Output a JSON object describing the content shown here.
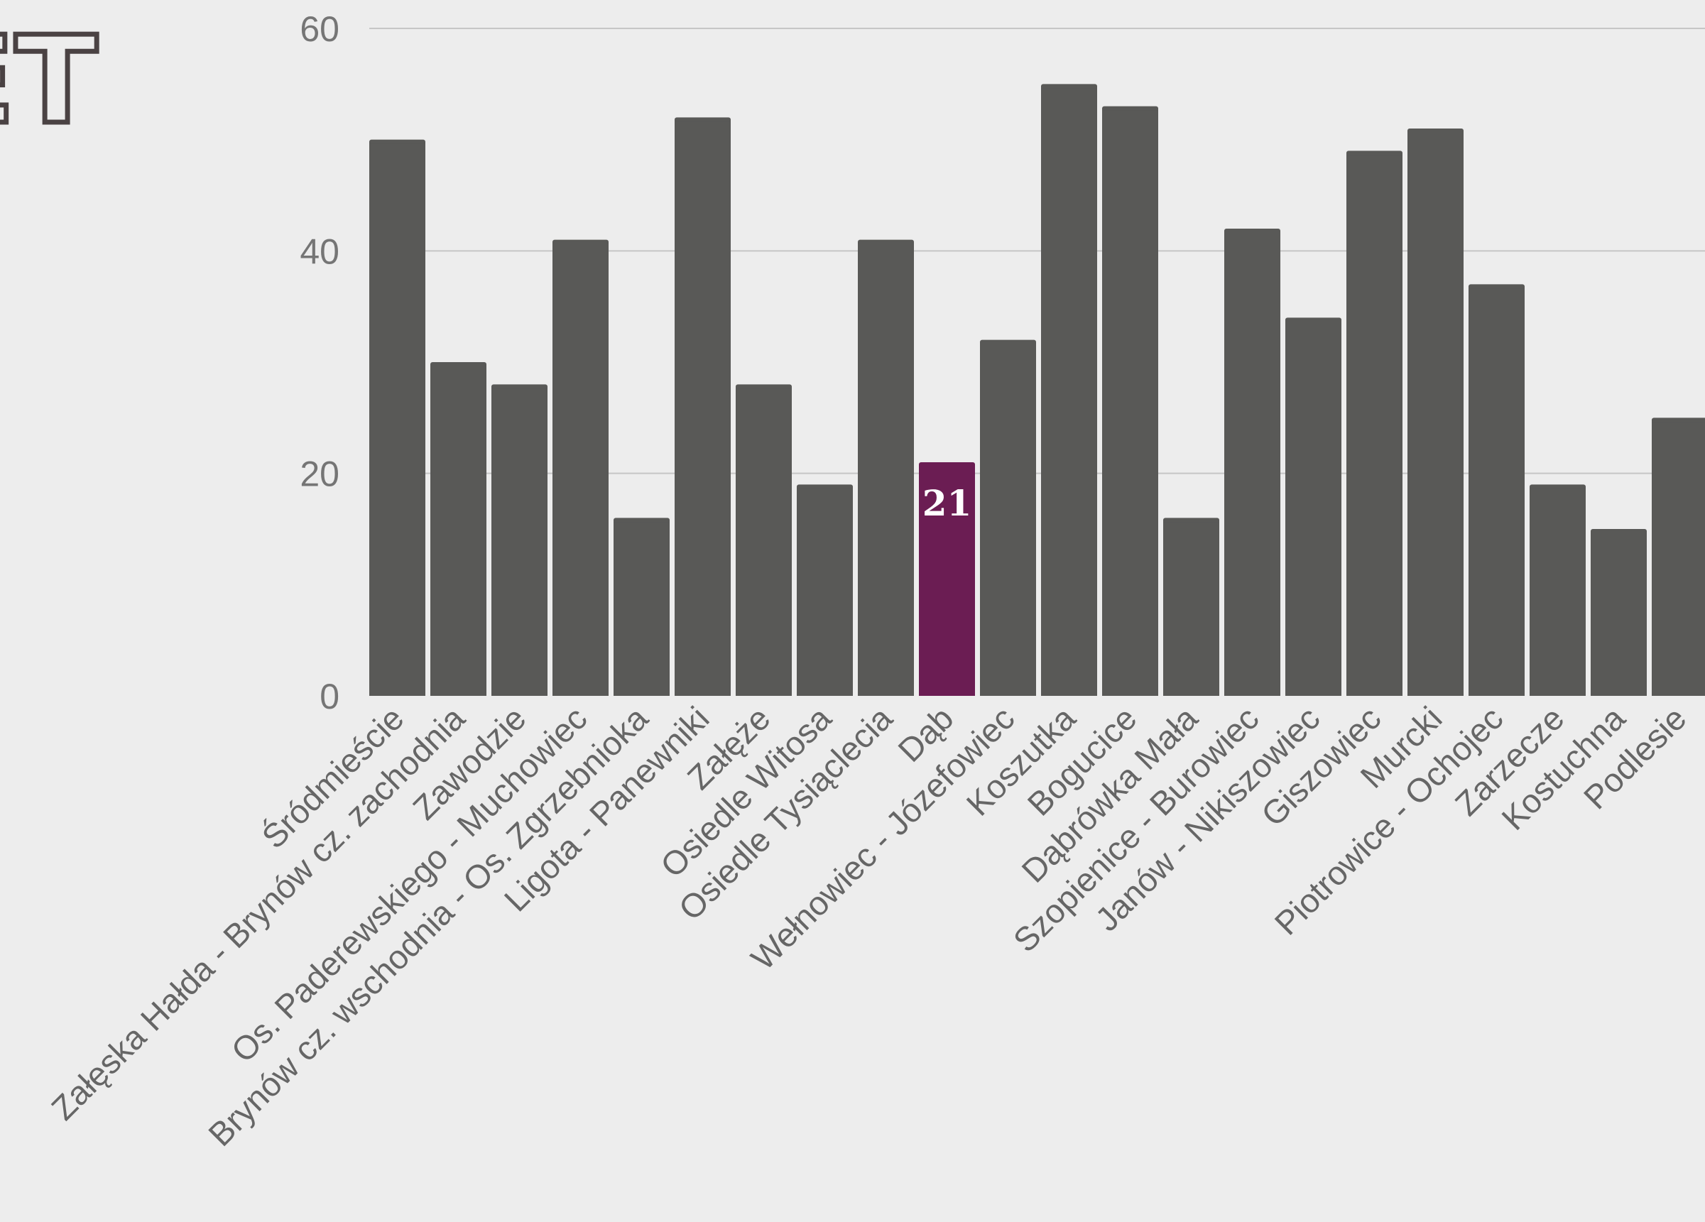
{
  "logo": {
    "text": "ET",
    "stroke_color": "#4a4243"
  },
  "chart_data": {
    "type": "bar",
    "title": "",
    "xlabel": "",
    "ylabel": "",
    "ylim": [
      0,
      60
    ],
    "yticks": [
      0,
      20,
      40,
      60
    ],
    "grid": true,
    "bar_color": "#595957",
    "highlight_color": "#6b1d53",
    "highlight_label_color": "#ffffff",
    "highlight_index": 9,
    "categories": [
      "Śródmieście",
      "Załęska Hałda - Brynów cz. zachodnia",
      "Zawodzie",
      "Os. Paderewskiego - Muchowiec",
      "Brynów cz. wschodnia - Os. Zgrzebnioka",
      "Ligota - Panewniki",
      "Załęże",
      "Osiedle Witosa",
      "Osiedle Tysiąclecia",
      "Dąb",
      "Wełnowiec - Józefowiec",
      "Koszutka",
      "Bogucice",
      "Dąbrówka Mała",
      "Szopienice - Burowiec",
      "Janów - Nikiszowiec",
      "Giszowiec",
      "Murcki",
      "Piotrowice - Ochojec",
      "Zarzecze",
      "Kostuchna",
      "Podlesie"
    ],
    "values": [
      50,
      30,
      28,
      41,
      16,
      52,
      28,
      19,
      41,
      21,
      32,
      55,
      53,
      16,
      42,
      34,
      49,
      51,
      37,
      19,
      15,
      25
    ],
    "data_labels": [
      {
        "index": 9,
        "text": "21"
      }
    ]
  }
}
